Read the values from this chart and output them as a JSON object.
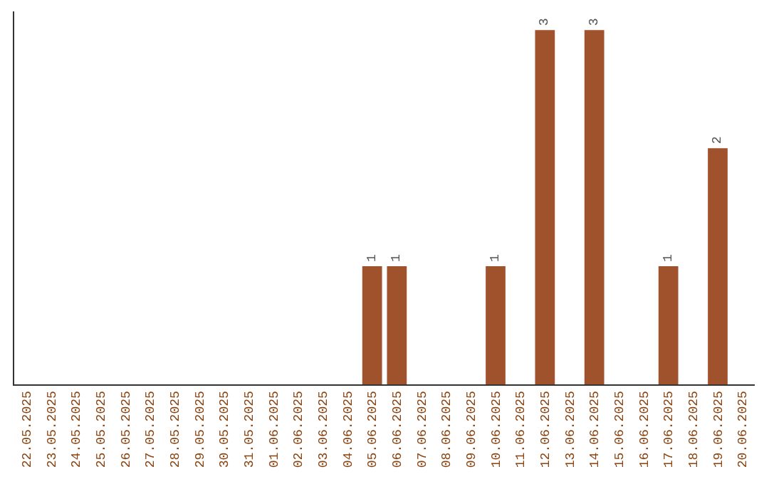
{
  "chart_data": {
    "type": "bar",
    "categories": [
      "22.05.2025",
      "23.05.2025",
      "24.05.2025",
      "25.05.2025",
      "26.05.2025",
      "27.05.2025",
      "28.05.2025",
      "29.05.2025",
      "30.05.2025",
      "31.05.2025",
      "01.06.2025",
      "02.06.2025",
      "03.06.2025",
      "04.06.2025",
      "05.06.2025",
      "06.06.2025",
      "07.06.2025",
      "08.06.2025",
      "09.06.2025",
      "10.06.2025",
      "11.06.2025",
      "12.06.2025",
      "13.06.2025",
      "14.06.2025",
      "15.06.2025",
      "16.06.2025",
      "17.06.2025",
      "18.06.2025",
      "19.06.2025",
      "20.06.2025"
    ],
    "values": [
      null,
      null,
      null,
      null,
      null,
      null,
      null,
      null,
      null,
      null,
      null,
      null,
      null,
      null,
      1,
      1,
      null,
      null,
      null,
      1,
      null,
      3,
      null,
      3,
      null,
      null,
      1,
      null,
      2,
      null
    ],
    "color": "#a0522d",
    "data_labels": true
  }
}
